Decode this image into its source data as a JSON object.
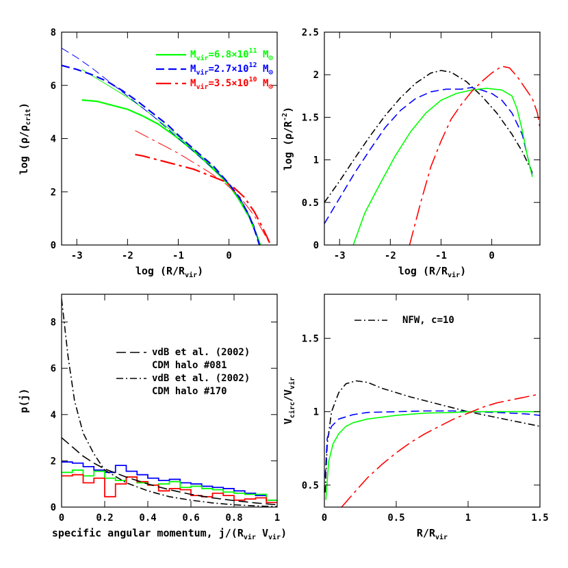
{
  "chart_data": [
    {
      "id": "density",
      "type": "line",
      "xlim": [
        -3.3,
        0.95
      ],
      "ylim": [
        0,
        8
      ],
      "x_ticks": [
        -3,
        -2,
        -1,
        0
      ],
      "y_ticks": [
        0,
        2,
        4,
        6,
        8
      ],
      "x_tick_labels": [
        "-3",
        "-2",
        "-1",
        "0"
      ],
      "y_tick_labels": [
        "0",
        "2",
        "4",
        "6",
        "8"
      ],
      "xlabel": {
        "main": "log (R/R",
        "sub": "vir",
        "close": ")"
      },
      "ylabel": {
        "main": "log (ρ/ρ",
        "sub": "crit",
        "close": ")"
      },
      "legend": {
        "placement": "top-right",
        "entries": [
          {
            "text_main": "M",
            "text_sub": "vir",
            "text_mid": "=6.8×10",
            "text_sup": "11",
            "text_end": " M",
            "text_sun": "⊙",
            "color": "#00ff00",
            "dash": ""
          },
          {
            "text_main": "M",
            "text_sub": "vir",
            "text_mid": "=2.7×10",
            "text_sup": "12",
            "text_end": " M",
            "text_sun": "⊙",
            "color": "#0000ff",
            "dash": "12 6"
          },
          {
            "text_main": "M",
            "text_sub": "vir",
            "text_mid": "=3.5×10",
            "text_sup": "10",
            "text_end": " M",
            "text_sun": "⊙",
            "color": "#ff0000",
            "dash": "22 6 4 6"
          }
        ]
      },
      "series": [
        {
          "color": "#00ff00",
          "width": 2.2,
          "dash": "",
          "x": [
            -2.9,
            -2.6,
            -2.3,
            -2.0,
            -1.7,
            -1.4,
            -1.1,
            -0.8,
            -0.5,
            -0.2,
            0.0,
            0.2,
            0.4,
            0.55,
            0.62
          ],
          "y": [
            5.45,
            5.4,
            5.25,
            5.1,
            4.85,
            4.55,
            4.15,
            3.7,
            3.2,
            2.65,
            2.25,
            1.7,
            1.05,
            0.35,
            0.0
          ]
        },
        {
          "color": "#00ff00",
          "width": 1.0,
          "dash": "",
          "x": [
            -2.9,
            -2.6,
            -2.3,
            -2.0,
            -1.7,
            -1.4,
            -1.1,
            -0.8,
            -0.5,
            -0.2,
            0.0,
            0.2,
            0.4,
            0.55,
            0.62
          ],
          "y": [
            6.6,
            6.25,
            5.9,
            5.55,
            5.15,
            4.7,
            4.25,
            3.75,
            3.25,
            2.7,
            2.3,
            1.75,
            1.1,
            0.4,
            0.0
          ]
        },
        {
          "color": "#0000ff",
          "width": 2.2,
          "dash": "12 6",
          "x": [
            -3.3,
            -3.0,
            -2.7,
            -2.4,
            -2.1,
            -1.8,
            -1.5,
            -1.2,
            -0.9,
            -0.6,
            -0.3,
            0.0,
            0.2,
            0.4,
            0.5,
            0.6
          ],
          "y": [
            6.75,
            6.6,
            6.4,
            6.15,
            5.8,
            5.4,
            4.95,
            4.5,
            3.95,
            3.45,
            2.95,
            2.3,
            1.8,
            1.1,
            0.6,
            0.0
          ]
        },
        {
          "color": "#0000ff",
          "width": 1.0,
          "dash": "12 6",
          "x": [
            -3.3,
            -3.0,
            -2.7,
            -2.4,
            -2.1,
            -1.8,
            -1.5,
            -1.2,
            -0.9,
            -0.6,
            -0.3,
            0.0,
            0.3,
            0.5,
            0.6
          ],
          "y": [
            7.4,
            7.05,
            6.65,
            6.2,
            5.75,
            5.3,
            4.85,
            4.35,
            3.85,
            3.35,
            2.85,
            2.3,
            1.5,
            0.7,
            0.0
          ]
        },
        {
          "color": "#ff0000",
          "width": 2.2,
          "dash": "22 6 4 6",
          "x": [
            -1.85,
            -1.7,
            -1.5,
            -1.3,
            -1.1,
            -0.9,
            -0.7,
            -0.5,
            -0.3,
            -0.1,
            0.1,
            0.3,
            0.5,
            0.65,
            0.75,
            0.82
          ],
          "y": [
            3.4,
            3.35,
            3.25,
            3.15,
            3.05,
            2.95,
            2.85,
            2.7,
            2.55,
            2.4,
            2.15,
            1.8,
            1.25,
            0.7,
            0.3,
            0.0
          ]
        },
        {
          "color": "#ff0000",
          "width": 1.0,
          "dash": "22 6 4 6",
          "x": [
            -1.85,
            -1.6,
            -1.3,
            -1.0,
            -0.7,
            -0.4,
            -0.1,
            0.2,
            0.5,
            0.7,
            0.82
          ],
          "y": [
            4.3,
            4.05,
            3.75,
            3.45,
            3.1,
            2.75,
            2.35,
            1.85,
            1.1,
            0.4,
            0.0
          ]
        }
      ]
    },
    {
      "id": "rho-r2",
      "type": "line",
      "xlim": [
        -3.3,
        0.95
      ],
      "ylim": [
        0,
        2.5
      ],
      "x_ticks": [
        -3,
        -2,
        -1,
        0
      ],
      "y_ticks": [
        0,
        0.5,
        1,
        1.5,
        2,
        2.5
      ],
      "x_tick_labels": [
        "-3",
        "-2",
        "-1",
        "0"
      ],
      "y_tick_labels": [
        "0",
        "0.5",
        "1",
        "1.5",
        "2",
        "2.5"
      ],
      "xlabel": {
        "main": "log (R/R",
        "sub": "vir",
        "close": ")"
      },
      "ylabel": {
        "main": "log (ρ/R",
        "sup": "-2",
        "close": ")"
      },
      "series": [
        {
          "color": "#000000",
          "width": 1.6,
          "dash": "10 4 2 4",
          "x": [
            -3.3,
            -3.0,
            -2.7,
            -2.4,
            -2.1,
            -1.8,
            -1.5,
            -1.2,
            -1.0,
            -0.8,
            -0.5,
            -0.2,
            0.1,
            0.4,
            0.6,
            0.8
          ],
          "y": [
            0.5,
            0.75,
            1.02,
            1.28,
            1.52,
            1.73,
            1.9,
            2.02,
            2.05,
            2.03,
            1.92,
            1.75,
            1.55,
            1.3,
            1.1,
            0.85
          ]
        },
        {
          "color": "#0000ff",
          "width": 1.6,
          "dash": "12 6",
          "x": [
            -3.3,
            -3.0,
            -2.7,
            -2.4,
            -2.1,
            -1.8,
            -1.5,
            -1.2,
            -0.9,
            -0.6,
            -0.4,
            -0.2,
            0.0,
            0.2,
            0.4,
            0.6,
            0.7,
            0.8
          ],
          "y": [
            0.25,
            0.55,
            0.85,
            1.12,
            1.38,
            1.58,
            1.72,
            1.8,
            1.83,
            1.83,
            1.85,
            1.82,
            1.78,
            1.7,
            1.55,
            1.3,
            1.05,
            0.82
          ]
        },
        {
          "color": "#00ff00",
          "width": 1.6,
          "dash": "",
          "x": [
            -2.73,
            -2.5,
            -2.2,
            -1.9,
            -1.6,
            -1.3,
            -1.0,
            -0.7,
            -0.4,
            -0.1,
            0.2,
            0.4,
            0.5,
            0.6,
            0.7,
            0.8
          ],
          "y": [
            0.0,
            0.38,
            0.72,
            1.05,
            1.33,
            1.55,
            1.7,
            1.78,
            1.82,
            1.84,
            1.82,
            1.75,
            1.6,
            1.35,
            1.05,
            0.8
          ]
        },
        {
          "color": "#ff0000",
          "width": 1.6,
          "dash": "22 6 4 6",
          "x": [
            -1.62,
            -1.4,
            -1.2,
            -1.0,
            -0.8,
            -0.6,
            -0.4,
            -0.2,
            0.0,
            0.2,
            0.35,
            0.5,
            0.65,
            0.8,
            0.9,
            0.95
          ],
          "y": [
            0.0,
            0.5,
            0.92,
            1.22,
            1.48,
            1.65,
            1.8,
            1.92,
            2.02,
            2.1,
            2.08,
            1.98,
            1.85,
            1.72,
            1.55,
            1.38
          ]
        }
      ]
    },
    {
      "id": "angular-momentum",
      "type": "line",
      "xlim": [
        0,
        1
      ],
      "ylim": [
        0,
        9.2
      ],
      "x_ticks": [
        0,
        0.2,
        0.4,
        0.6,
        0.8,
        1
      ],
      "y_ticks": [
        0,
        2,
        4,
        6,
        8
      ],
      "x_tick_labels": [
        "0",
        "0.2",
        "0.4",
        "0.6",
        "0.8",
        "1"
      ],
      "y_tick_labels": [
        "0",
        "2",
        "4",
        "6",
        "8"
      ],
      "xlabel": {
        "main": "specific angular momentum, j/(R",
        "sub": "vir",
        "mid": " V",
        "sub2": "vir",
        "close": ")"
      },
      "ylabel": {
        "main": "p(j)"
      },
      "legend": {
        "placement": "center-right",
        "entries": [
          {
            "line1": "vdB et al. (2002)",
            "line2": "CDM halo #081",
            "color": "#000000",
            "dash": "14 6"
          },
          {
            "line1": "vdB et al. (2002)",
            "line2": "CDM halo #170",
            "color": "#000000",
            "dash": "10 4 2 4"
          }
        ]
      },
      "series": [
        {
          "color": "#000000",
          "width": 1.6,
          "dash": "10 4 2 4",
          "x": [
            0.0,
            0.03,
            0.06,
            0.1,
            0.15,
            0.2,
            0.3,
            0.4,
            0.5,
            0.6,
            0.7,
            0.8,
            0.9,
            1.0
          ],
          "y": [
            9.0,
            6.5,
            4.6,
            3.2,
            2.3,
            1.6,
            1.05,
            0.7,
            0.45,
            0.3,
            0.18,
            0.1,
            0.05,
            0.02
          ]
        },
        {
          "color": "#000000",
          "width": 1.6,
          "dash": "14 6",
          "x": [
            0.0,
            0.05,
            0.1,
            0.15,
            0.2,
            0.3,
            0.4,
            0.5,
            0.6,
            0.7,
            0.8,
            0.9,
            1.0
          ],
          "y": [
            3.0,
            2.6,
            2.2,
            1.9,
            1.65,
            1.3,
            1.0,
            0.75,
            0.55,
            0.4,
            0.28,
            0.18,
            0.1
          ]
        }
      ],
      "histograms": [
        {
          "color": "#0000ff",
          "bin_width": 0.05,
          "values": [
            1.95,
            1.9,
            1.75,
            1.6,
            1.5,
            1.8,
            1.55,
            1.4,
            1.25,
            1.15,
            1.2,
            1.05,
            1.0,
            0.9,
            0.85,
            0.8,
            0.7,
            0.6,
            0.5,
            0.3
          ]
        },
        {
          "color": "#00ff00",
          "bin_width": 0.05,
          "values": [
            1.5,
            1.6,
            1.35,
            1.55,
            1.25,
            1.15,
            1.3,
            1.05,
            0.95,
            1.0,
            1.1,
            0.85,
            0.9,
            0.8,
            0.75,
            0.65,
            0.6,
            0.55,
            0.55,
            0.3
          ]
        },
        {
          "color": "#ff0000",
          "bin_width": 0.05,
          "values": [
            1.35,
            1.4,
            1.05,
            1.25,
            0.45,
            1.0,
            1.3,
            1.1,
            0.95,
            0.7,
            0.8,
            0.75,
            0.5,
            0.45,
            0.6,
            0.5,
            0.3,
            0.35,
            0.4,
            0.2
          ]
        }
      ]
    },
    {
      "id": "rotation-curve",
      "type": "line",
      "xlim": [
        0,
        1.5
      ],
      "ylim": [
        0.35,
        1.8
      ],
      "x_ticks": [
        0,
        0.5,
        1,
        1.5
      ],
      "y_ticks": [
        0.5,
        1,
        1.5
      ],
      "x_tick_labels": [
        "0",
        "0.5",
        "1",
        "1.5"
      ],
      "y_tick_labels": [
        "0.5",
        "1",
        "1.5"
      ],
      "xlabel": {
        "main": "R/R",
        "sub": "vir"
      },
      "ylabel": {
        "main": "V",
        "sub": "circ",
        "mid": "/V",
        "sub2": "vir"
      },
      "legend": {
        "placement": "top-left",
        "entries": [
          {
            "text": "NFW, c=10",
            "color": "#000000",
            "dash": "10 4 2 4"
          }
        ]
      },
      "series": [
        {
          "color": "#000000",
          "width": 1.6,
          "dash": "10 4 2 4",
          "x": [
            0.005,
            0.02,
            0.05,
            0.1,
            0.15,
            0.22,
            0.3,
            0.4,
            0.6,
            0.8,
            1.0,
            1.2,
            1.4,
            1.5
          ],
          "y": [
            0.45,
            0.78,
            1.0,
            1.13,
            1.19,
            1.21,
            1.2,
            1.16,
            1.1,
            1.05,
            1.0,
            0.96,
            0.92,
            0.9
          ]
        },
        {
          "color": "#0000ff",
          "width": 1.6,
          "dash": "12 6",
          "x": [
            0.005,
            0.02,
            0.05,
            0.1,
            0.2,
            0.3,
            0.5,
            0.7,
            0.9,
            1.0,
            1.2,
            1.4,
            1.5
          ],
          "y": [
            0.55,
            0.82,
            0.9,
            0.95,
            0.98,
            0.995,
            1.0,
            1.005,
            1.005,
            1.0,
            0.995,
            0.985,
            0.975
          ]
        },
        {
          "color": "#00ff00",
          "width": 1.6,
          "dash": "",
          "x": [
            0.01,
            0.03,
            0.06,
            0.1,
            0.15,
            0.2,
            0.3,
            0.5,
            0.7,
            0.9,
            1.0,
            1.2,
            1.4,
            1.5
          ],
          "y": [
            0.4,
            0.66,
            0.78,
            0.85,
            0.9,
            0.925,
            0.95,
            0.975,
            0.99,
            0.995,
            1.0,
            1.0,
            1.0,
            1.0
          ]
        },
        {
          "color": "#ff0000",
          "width": 1.6,
          "dash": "22 6 4 6",
          "x": [
            0.12,
            0.2,
            0.3,
            0.4,
            0.5,
            0.6,
            0.7,
            0.8,
            0.9,
            1.0,
            1.1,
            1.2,
            1.3,
            1.4,
            1.5
          ],
          "y": [
            0.35,
            0.44,
            0.55,
            0.64,
            0.72,
            0.79,
            0.85,
            0.9,
            0.95,
            0.99,
            1.03,
            1.06,
            1.08,
            1.1,
            1.12
          ]
        }
      ]
    }
  ]
}
